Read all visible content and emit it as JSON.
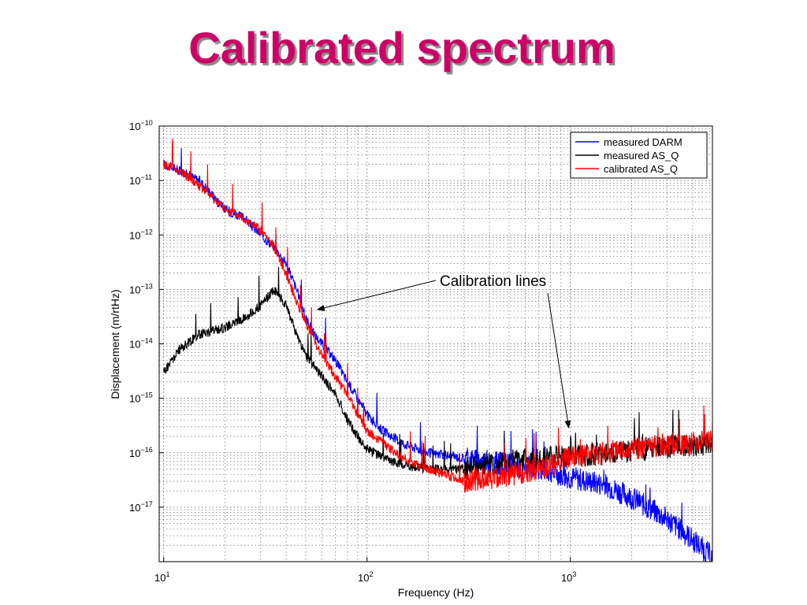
{
  "slide": {
    "title": "Calibrated spectrum"
  },
  "chart_data": {
    "type": "line",
    "title": "",
    "xlabel": "Frequency (Hz)",
    "ylabel": "Displacement (m/rtHz)",
    "xscale": "log",
    "yscale": "log",
    "xlim": [
      9.5,
      5000
    ],
    "ylim": [
      1e-18,
      1e-10
    ],
    "grid": true,
    "legend_position": "top-right",
    "x_ticks": [
      {
        "value": 10,
        "base": "10",
        "exp": "1"
      },
      {
        "value": 100,
        "base": "10",
        "exp": "2"
      },
      {
        "value": 1000,
        "base": "10",
        "exp": "3"
      }
    ],
    "y_ticks": [
      {
        "value": 1e-10,
        "base": "10",
        "exp": "−10"
      },
      {
        "value": 1e-11,
        "base": "10",
        "exp": "−11"
      },
      {
        "value": 1e-12,
        "base": "10",
        "exp": "−12"
      },
      {
        "value": 1e-13,
        "base": "10",
        "exp": "−13"
      },
      {
        "value": 1e-14,
        "base": "10",
        "exp": "−14"
      },
      {
        "value": 1e-15,
        "base": "10",
        "exp": "−15"
      },
      {
        "value": 1e-16,
        "base": "10",
        "exp": "−16"
      },
      {
        "value": 1e-17,
        "base": "10",
        "exp": "−17"
      }
    ],
    "series": [
      {
        "name": "measured DARM",
        "color": "#0000ff",
        "x": [
          10,
          12,
          15,
          20,
          25,
          30,
          35,
          40,
          45,
          50,
          55,
          60,
          70,
          80,
          90,
          100,
          120,
          150,
          200,
          300,
          400,
          500,
          600,
          700,
          800,
          1000,
          1500,
          2000,
          3000,
          4000,
          5000
        ],
        "y": [
          2e-11,
          1.5e-11,
          1e-11,
          3e-12,
          2e-12,
          1e-12,
          6e-13,
          3e-13,
          1e-13,
          3e-14,
          1.5e-14,
          1e-14,
          5e-15,
          2e-15,
          1e-15,
          5e-16,
          2.5e-16,
          1.5e-16,
          1e-16,
          8e-17,
          7e-17,
          6e-17,
          5.5e-17,
          5e-17,
          4.5e-17,
          3.5e-17,
          2.5e-17,
          1.5e-17,
          6e-18,
          2.5e-18,
          1.2e-18
        ]
      },
      {
        "name": "measured AS_Q",
        "color": "#000000",
        "x": [
          10,
          12,
          15,
          20,
          25,
          30,
          35,
          40,
          45,
          50,
          55,
          60,
          70,
          80,
          90,
          100,
          120,
          150,
          200,
          300,
          400,
          500,
          600,
          700,
          800,
          1000,
          1500,
          2000,
          3000,
          4000,
          5000
        ],
        "y": [
          3e-15,
          8e-15,
          1.5e-14,
          2e-14,
          3e-14,
          5e-14,
          1e-13,
          5e-14,
          1.5e-14,
          6e-15,
          4e-15,
          2.5e-15,
          1.2e-15,
          4e-16,
          2e-16,
          1.2e-16,
          8e-17,
          6e-17,
          5e-17,
          5e-17,
          6e-17,
          7e-17,
          7.5e-17,
          8e-17,
          8e-17,
          8.5e-17,
          1e-16,
          1.1e-16,
          1.3e-16,
          1.4e-16,
          1.5e-16
        ]
      },
      {
        "name": "calibrated AS_Q",
        "color": "#ff0000",
        "x": [
          10,
          12,
          15,
          20,
          25,
          30,
          35,
          40,
          45,
          50,
          55,
          60,
          70,
          80,
          90,
          100,
          120,
          150,
          200,
          300,
          400,
          500,
          600,
          700,
          800,
          1000,
          1500,
          2000,
          3000,
          4000,
          5000
        ],
        "y": [
          2e-11,
          1.5e-11,
          8e-12,
          3e-12,
          2e-12,
          1.2e-12,
          6e-13,
          2e-13,
          6e-14,
          2.5e-14,
          1.2e-14,
          6e-15,
          2.5e-15,
          1.2e-15,
          5e-16,
          2.5e-16,
          1.5e-16,
          8e-17,
          5e-17,
          3e-17,
          3.5e-17,
          4e-17,
          4.5e-17,
          5e-17,
          6e-17,
          8e-17,
          1e-16,
          1.2e-16,
          1.4e-16,
          1.5e-16,
          1.6e-16
        ]
      }
    ],
    "annotations": [
      {
        "text": "Calibration lines",
        "targets": [
          [
            55,
            5e-14
          ],
          [
            1000,
            3e-16
          ]
        ]
      }
    ]
  }
}
